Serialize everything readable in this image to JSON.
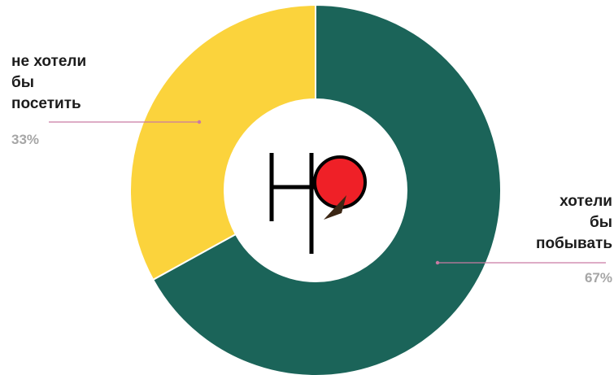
{
  "chart_data": {
    "type": "pie",
    "donut": true,
    "slices": [
      {
        "label_lines": [
          "хотели",
          "бы",
          "побывать"
        ],
        "value": 67,
        "value_label": "67%",
        "color": "#1b6459"
      },
      {
        "label_lines": [
          "не хотели",
          "бы",
          "посетить"
        ],
        "value": 33,
        "value_label": "33%",
        "color": "#fbd33c"
      }
    ],
    "start": "top, clockwise",
    "legend": "callout labels beside slices"
  },
  "logo": {
    "text": "НР",
    "circle_color": "#ef2027",
    "line_color": "#000000"
  },
  "colors": {
    "leader_line": "#c97aa3"
  }
}
